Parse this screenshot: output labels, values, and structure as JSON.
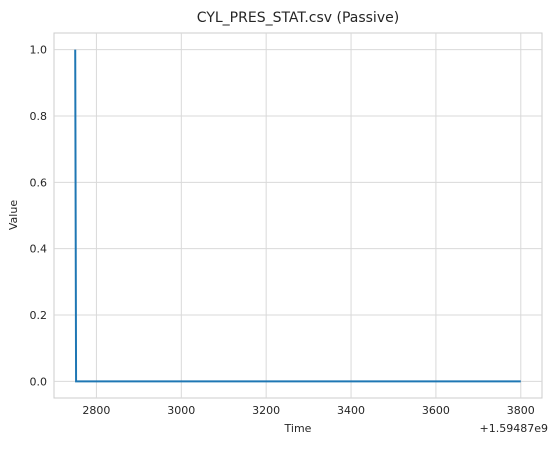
{
  "chart_data": {
    "type": "line",
    "title": "CYL_PRES_STAT.csv (Passive)",
    "xlabel": "Time",
    "ylabel": "Value",
    "x_offset_label": "+1.59487e9",
    "xlim": [
      2700,
      3850
    ],
    "ylim": [
      -0.05,
      1.05
    ],
    "xticks": [
      2800,
      3000,
      3200,
      3400,
      3600,
      3800
    ],
    "xtick_labels": [
      "2800",
      "3000",
      "3200",
      "3400",
      "3600",
      "3800"
    ],
    "yticks": [
      0.0,
      0.2,
      0.4,
      0.6,
      0.8,
      1.0
    ],
    "ytick_labels": [
      "0.0",
      "0.2",
      "0.4",
      "0.6",
      "0.8",
      "1.0"
    ],
    "grid": true,
    "series": [
      {
        "color": "#1f77b4",
        "x": [
          2750,
          2750,
          2752,
          3800
        ],
        "y": [
          1.0,
          1.0,
          0.0,
          0.0
        ]
      }
    ]
  }
}
